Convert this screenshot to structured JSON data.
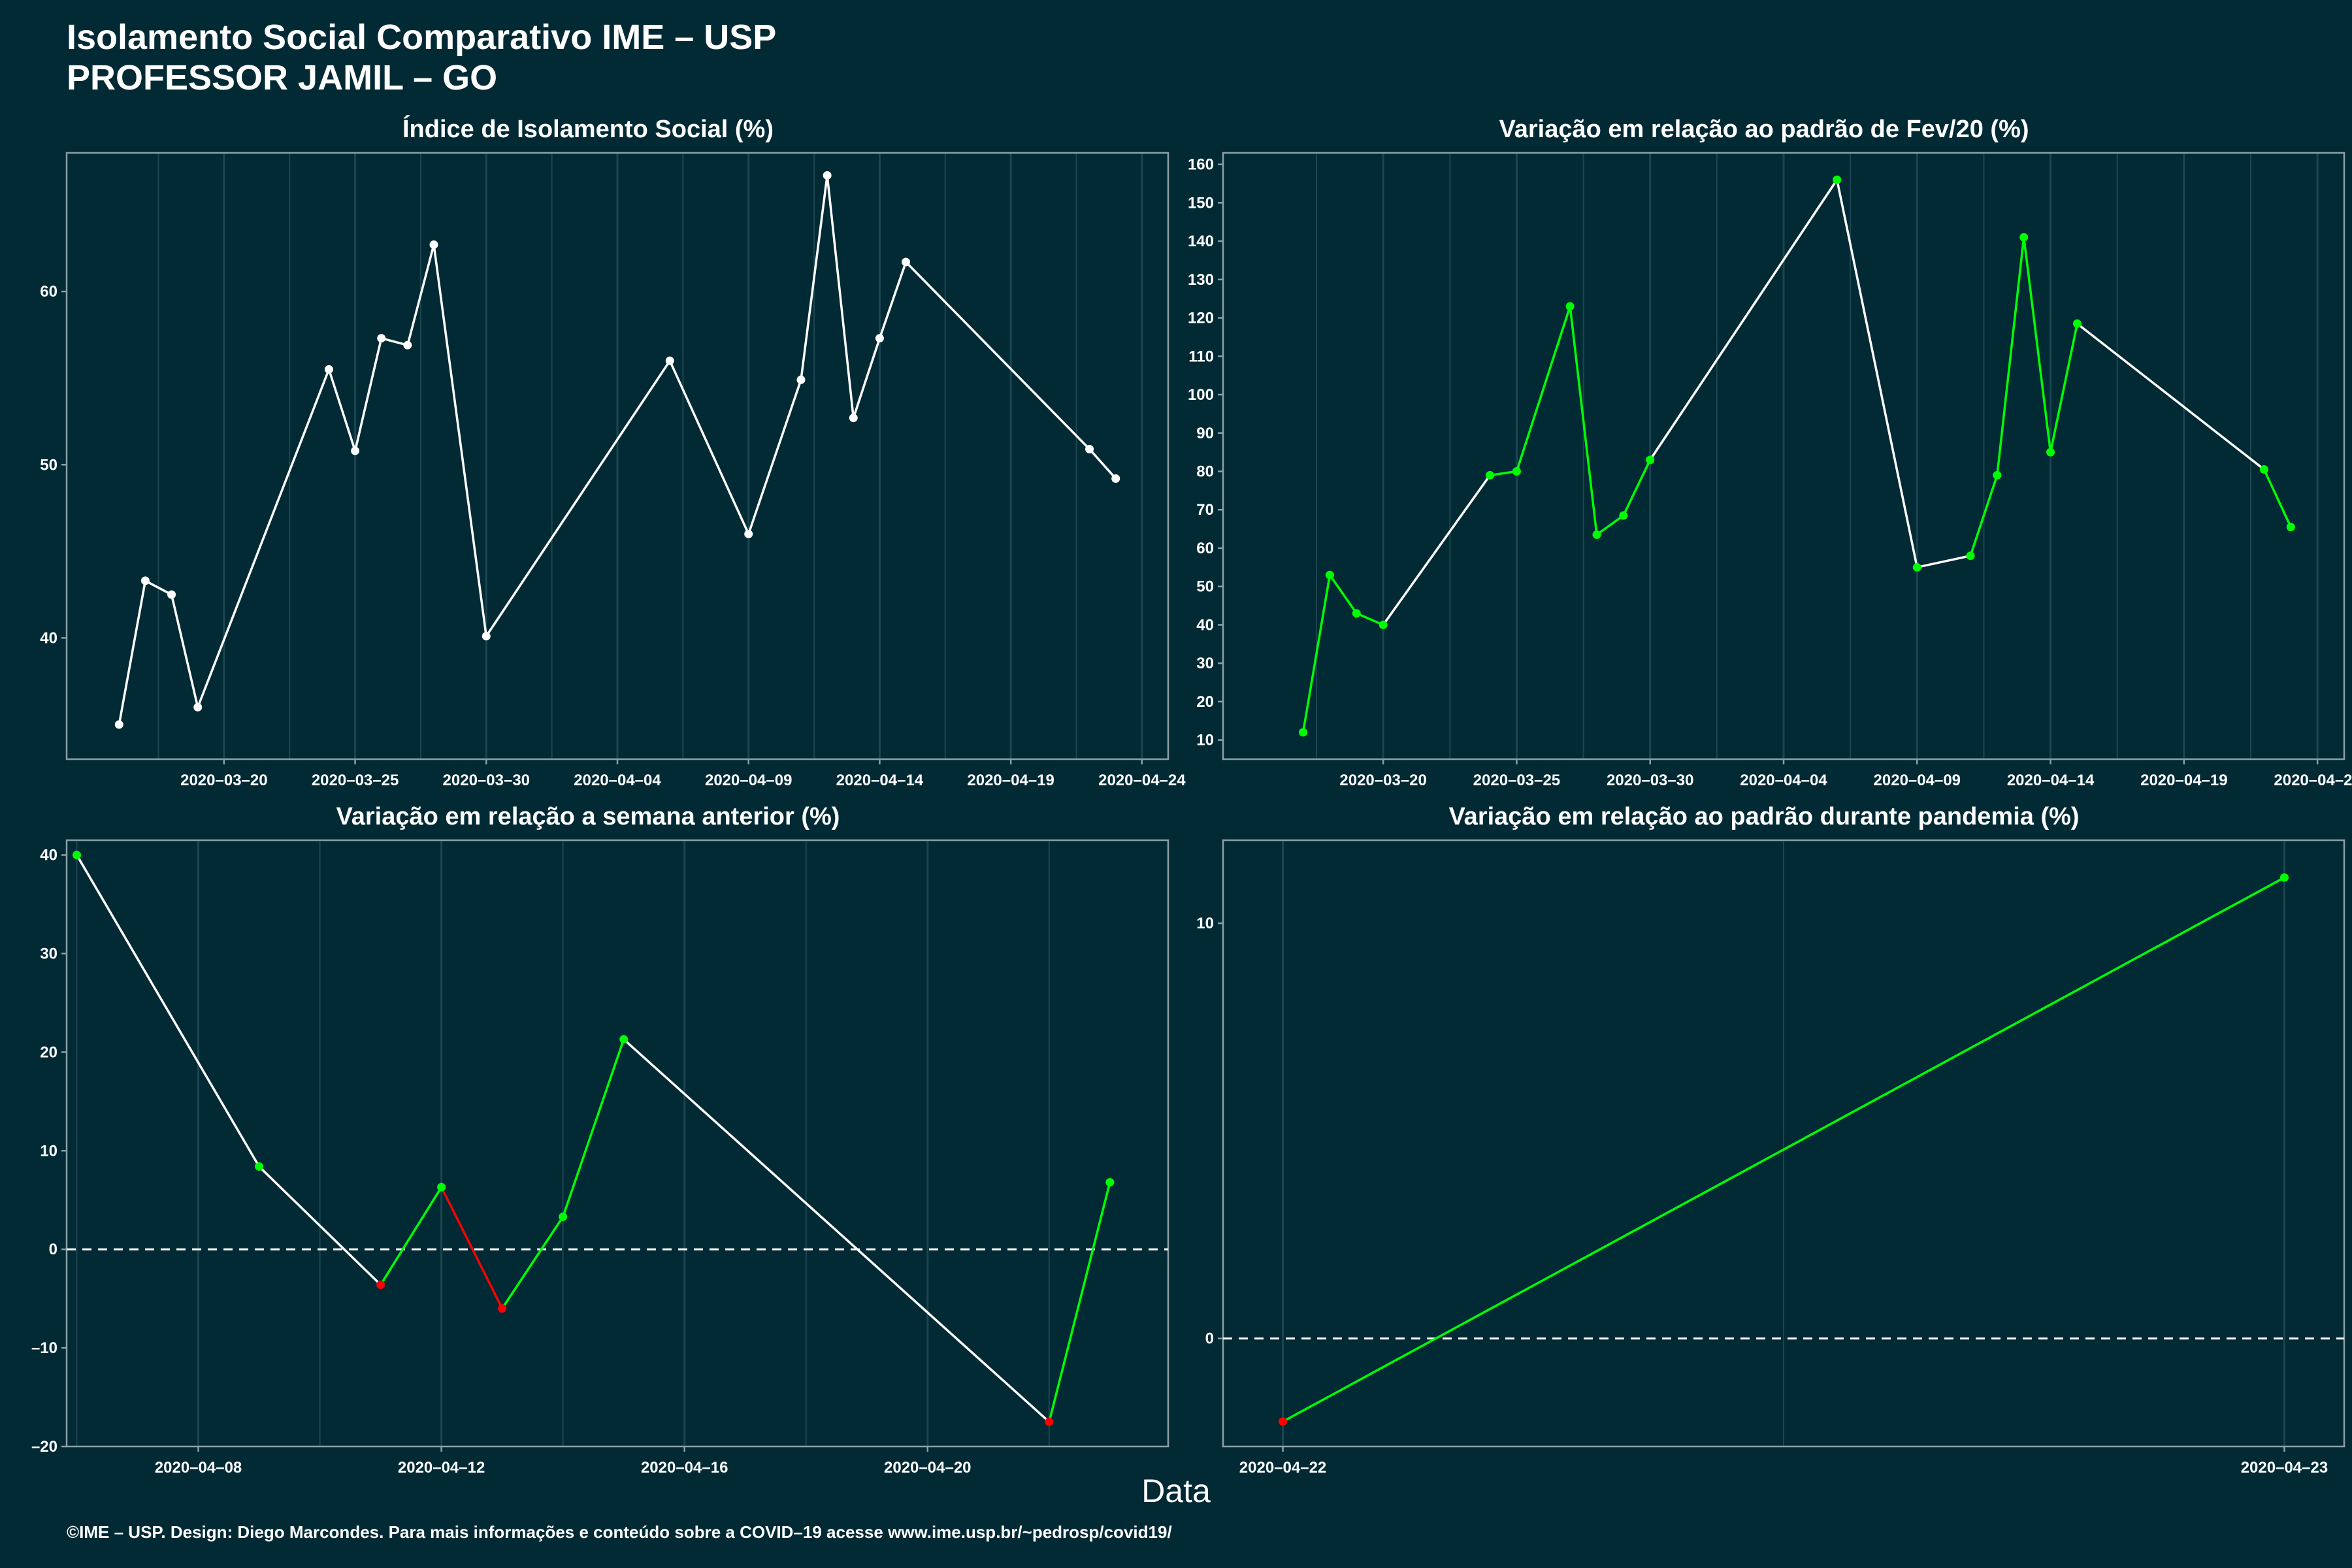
{
  "header": {
    "title_line1": "Isolamento Social Comparativo IME – USP",
    "title_line2": "PROFESSOR JAMIL – GO"
  },
  "xlabel": "Data",
  "footer": "©IME – USP. Design: Diego Marcondes. Para mais informações e conteúdo sobre a COVID–19 acesse www.ime.usp.br/~pedrosp/covid19/",
  "colors": {
    "background": "#022a35",
    "line_white": "#ffffff",
    "green": "#00ff00",
    "red": "#ff0000",
    "grid": "#1b4550",
    "axis": "#8aa0a6"
  },
  "chart_data": [
    {
      "id": "p1",
      "type": "line",
      "title": "Índice de Isolamento Social (%)",
      "x_kind": "date",
      "xlim": [
        "2020-03-14",
        "2020-04-25"
      ],
      "ylim": [
        33,
        68
      ],
      "x_ticks": [
        "2020-03-20",
        "2020-03-25",
        "2020-03-30",
        "2020-04-04",
        "2020-04-09",
        "2020-04-14",
        "2020-04-19",
        "2020-04-24"
      ],
      "x_tick_labels": [
        "2020–03–20",
        "2020–03–25",
        "2020–03–30",
        "2020–04–04",
        "2020–04–09",
        "2020–04–14",
        "2020–04–19",
        "2020–04–24"
      ],
      "y_ticks": [
        40,
        50,
        60
      ],
      "y_tick_labels": [
        "40",
        "50",
        "60"
      ],
      "zero_line": false,
      "point_color": "white",
      "x": [
        "2020-03-16",
        "2020-03-17",
        "2020-03-18",
        "2020-03-19",
        "2020-03-24",
        "2020-03-25",
        "2020-03-26",
        "2020-03-27",
        "2020-03-28",
        "2020-03-30",
        "2020-04-06",
        "2020-04-09",
        "2020-04-11",
        "2020-04-12",
        "2020-04-13",
        "2020-04-14",
        "2020-04-15",
        "2020-04-22",
        "2020-04-23"
      ],
      "y": [
        35.0,
        43.3,
        42.5,
        36.0,
        55.5,
        50.8,
        57.3,
        56.9,
        62.7,
        40.1,
        56.0,
        46.0,
        54.9,
        66.7,
        52.7,
        57.3,
        61.7,
        50.9,
        49.2
      ],
      "seg_colors": [
        "white",
        "white",
        "white",
        "white",
        "white",
        "white",
        "white",
        "white",
        "white",
        "white",
        "white",
        "white",
        "white",
        "white",
        "white",
        "white",
        "white",
        "white"
      ]
    },
    {
      "id": "p2",
      "type": "line",
      "title": "Variação em relação ao padrão de Fev/20 (%)",
      "x_kind": "date",
      "xlim": [
        "2020-03-14",
        "2020-04-25"
      ],
      "ylim": [
        5,
        163
      ],
      "x_ticks": [
        "2020-03-20",
        "2020-03-25",
        "2020-03-30",
        "2020-04-04",
        "2020-04-09",
        "2020-04-14",
        "2020-04-19",
        "2020-04-24"
      ],
      "x_tick_labels": [
        "2020–03–20",
        "2020–03–25",
        "2020–03–30",
        "2020–04–04",
        "2020–04–09",
        "2020–04–14",
        "2020–04–19",
        "2020–04–24"
      ],
      "y_ticks": [
        10,
        20,
        30,
        40,
        50,
        60,
        70,
        80,
        90,
        100,
        110,
        120,
        130,
        140,
        150,
        160
      ],
      "y_tick_labels": [
        "10",
        "20",
        "30",
        "40",
        "50",
        "60",
        "70",
        "80",
        "90",
        "100",
        "110",
        "120",
        "130",
        "140",
        "150",
        "160"
      ],
      "zero_line": false,
      "point_color": "green",
      "x": [
        "2020-03-17",
        "2020-03-18",
        "2020-03-19",
        "2020-03-20",
        "2020-03-24",
        "2020-03-25",
        "2020-03-27",
        "2020-03-28",
        "2020-03-29",
        "2020-03-30",
        "2020-04-06",
        "2020-04-09",
        "2020-04-11",
        "2020-04-12",
        "2020-04-13",
        "2020-04-14",
        "2020-04-15",
        "2020-04-22",
        "2020-04-23"
      ],
      "y": [
        12,
        53,
        43,
        40,
        79,
        80,
        123,
        63.5,
        68.5,
        83,
        156,
        55,
        58,
        79,
        141,
        85,
        118.5,
        80.5,
        65.5
      ],
      "seg_colors": [
        "green",
        "green",
        "green",
        "white",
        "green",
        "green",
        "green",
        "green",
        "green",
        "white",
        "white",
        "white",
        "green",
        "green",
        "green",
        "green",
        "white",
        "green"
      ]
    },
    {
      "id": "p3",
      "type": "line",
      "title": "Variação em relação a semana anterior (%)",
      "x_kind": "date",
      "xlim": [
        "2020-04-05T20:00",
        "2020-04-23T23:00"
      ],
      "ylim": [
        -20,
        41.5
      ],
      "x_ticks": [
        "2020-04-08",
        "2020-04-12",
        "2020-04-16",
        "2020-04-20"
      ],
      "x_tick_labels": [
        "2020–04–08",
        "2020–04–12",
        "2020–04–16",
        "2020–04–20"
      ],
      "y_ticks": [
        -20,
        -10,
        0,
        10,
        20,
        30,
        40
      ],
      "y_tick_labels": [
        "–20",
        "–10",
        "0",
        "10",
        "20",
        "30",
        "40"
      ],
      "zero_line": true,
      "point_colors": [
        "green",
        "green",
        "red",
        "green",
        "red",
        "green",
        "green",
        "red",
        "green"
      ],
      "x": [
        "2020-04-06",
        "2020-04-09",
        "2020-04-11",
        "2020-04-12",
        "2020-04-13",
        "2020-04-14",
        "2020-04-15",
        "2020-04-22",
        "2020-04-23"
      ],
      "y": [
        40,
        8.4,
        -3.6,
        6.3,
        -6.0,
        3.3,
        21.3,
        -17.5,
        6.8
      ],
      "seg_colors": [
        "white",
        "white",
        "green",
        "red",
        "green",
        "green",
        "white",
        "green"
      ]
    },
    {
      "id": "p4",
      "type": "line",
      "title": "Variação em relação ao padrão durante pandemia (%)",
      "x_kind": "date",
      "xlim": [
        "2020-04-21T22:34",
        "2020-04-23T01:26"
      ],
      "ylim": [
        -2.6,
        12.0
      ],
      "x_ticks": [
        "2020-04-22",
        "2020-04-23"
      ],
      "x_tick_labels": [
        "2020–04–22",
        "2020–04–23"
      ],
      "minor_x": [
        "2020-04-22T12:00"
      ],
      "y_ticks": [
        0,
        10
      ],
      "y_tick_labels": [
        "0",
        "10"
      ],
      "zero_line": true,
      "point_colors": [
        "red",
        "green"
      ],
      "x": [
        "2020-04-22",
        "2020-04-23"
      ],
      "y": [
        -2.0,
        11.1
      ],
      "seg_colors": [
        "green"
      ]
    }
  ]
}
